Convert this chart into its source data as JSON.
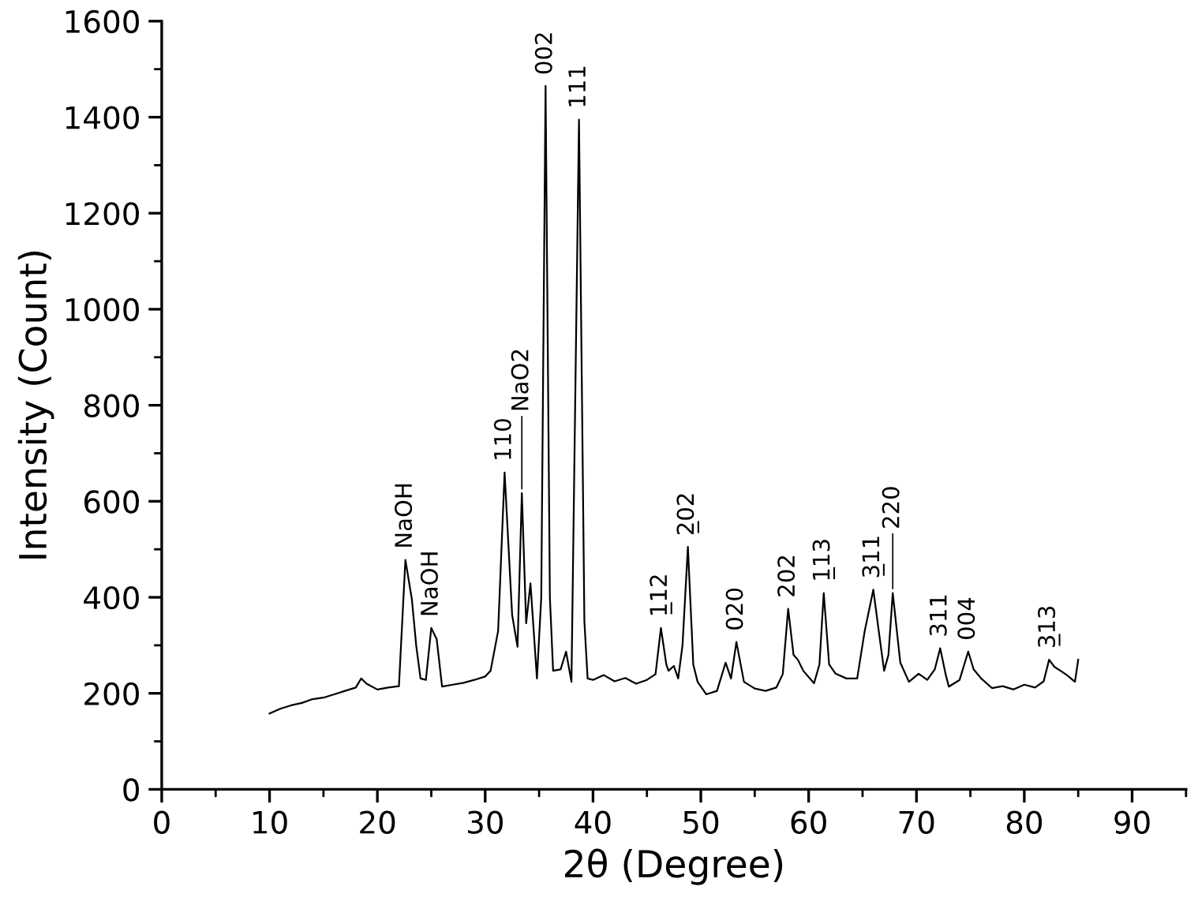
{
  "chart_data": {
    "type": "line",
    "xlabel": "2θ (Degree)",
    "ylabel": "Intensity (Count)",
    "xlim": [
      0,
      95
    ],
    "xticks": [
      0,
      10,
      20,
      30,
      40,
      50,
      60,
      70,
      80,
      90
    ],
    "ylim": [
      0,
      1600
    ],
    "yticks": [
      0,
      200,
      400,
      600,
      800,
      1000,
      1200,
      1400,
      1600
    ],
    "grid": false,
    "legend": false,
    "marker": "none",
    "line_style": "solid",
    "series": [
      {
        "color": "#000000",
        "x": [
          10,
          11,
          12,
          13,
          14,
          15,
          16,
          17,
          18,
          18.5,
          19,
          20,
          21,
          22,
          22.6,
          23.2,
          23.6,
          24,
          24.5,
          25,
          25.5,
          26,
          27,
          28,
          29,
          30,
          30.5,
          31.2,
          31.8,
          32.5,
          33,
          33.4,
          33.8,
          34.2,
          34.8,
          35.2,
          35.6,
          36,
          36.3,
          37,
          37.5,
          38,
          38.7,
          39.2,
          39.5,
          40,
          41,
          42,
          43,
          44,
          45,
          45.8,
          46.3,
          46.8,
          47,
          47.5,
          47.9,
          48.3,
          48.8,
          49.3,
          49.7,
          50.5,
          51.5,
          52.3,
          52.8,
          53.3,
          54,
          55,
          56,
          57,
          57.6,
          58.1,
          58.6,
          59,
          59.5,
          60.5,
          61,
          61.4,
          61.9,
          62.5,
          63.5,
          64.5,
          65.2,
          66,
          66.5,
          67,
          67.4,
          67.8,
          68.5,
          69.3,
          70.2,
          71,
          71.7,
          72.2,
          72.7,
          73,
          74,
          74.8,
          75.3,
          76,
          77,
          78,
          79,
          80,
          81,
          81.8,
          82.3,
          82.8,
          83.5,
          84,
          84.7,
          85
        ],
        "values": [
          158,
          168,
          175,
          180,
          188,
          191,
          198,
          205,
          212,
          231,
          220,
          208,
          212,
          215,
          478,
          396,
          300,
          231,
          228,
          336,
          313,
          214,
          218,
          222,
          228,
          235,
          247,
          330,
          660,
          363,
          297,
          617,
          346,
          429,
          231,
          400,
          1465,
          400,
          247,
          250,
          287,
          224,
          1395,
          350,
          231,
          228,
          238,
          225,
          232,
          220,
          228,
          240,
          336,
          260,
          247,
          257,
          231,
          300,
          505,
          260,
          224,
          198,
          205,
          264,
          231,
          307,
          224,
          210,
          205,
          212,
          240,
          376,
          280,
          270,
          247,
          221,
          260,
          409,
          260,
          241,
          231,
          231,
          330,
          416,
          330,
          247,
          280,
          409,
          264,
          224,
          241,
          228,
          250,
          294,
          240,
          214,
          228,
          287,
          250,
          231,
          211,
          215,
          208,
          218,
          212,
          225,
          270,
          255,
          245,
          237,
          224,
          270
        ]
      }
    ],
    "annotations": [
      {
        "text": "NaOH",
        "x": 22.6,
        "y": 478
      },
      {
        "text": "NaOH",
        "x": 25,
        "y": 336
      },
      {
        "text": "110",
        "x": 31.8,
        "y": 660
      },
      {
        "text": "NaO2",
        "x": 33.4,
        "y": 617
      },
      {
        "text": "002",
        "x": 35.6,
        "y": 1465
      },
      {
        "text": "111",
        "x": 38.7,
        "y": 1395
      },
      {
        "text": "1̲12",
        "x": 46.3,
        "y": 336
      },
      {
        "text": "2̲02",
        "x": 48.8,
        "y": 505
      },
      {
        "text": "020",
        "x": 53.3,
        "y": 307
      },
      {
        "text": "202",
        "x": 58.1,
        "y": 376
      },
      {
        "text": "1̲13",
        "x": 61.4,
        "y": 409
      },
      {
        "text": "3̲11",
        "x": 66,
        "y": 416
      },
      {
        "text": "220",
        "x": 67.8,
        "y": 409
      },
      {
        "text": "311",
        "x": 72.2,
        "y": 294
      },
      {
        "text": "004",
        "x": 74.8,
        "y": 287
      },
      {
        "text": "3̲13",
        "x": 82.3,
        "y": 270
      }
    ]
  }
}
